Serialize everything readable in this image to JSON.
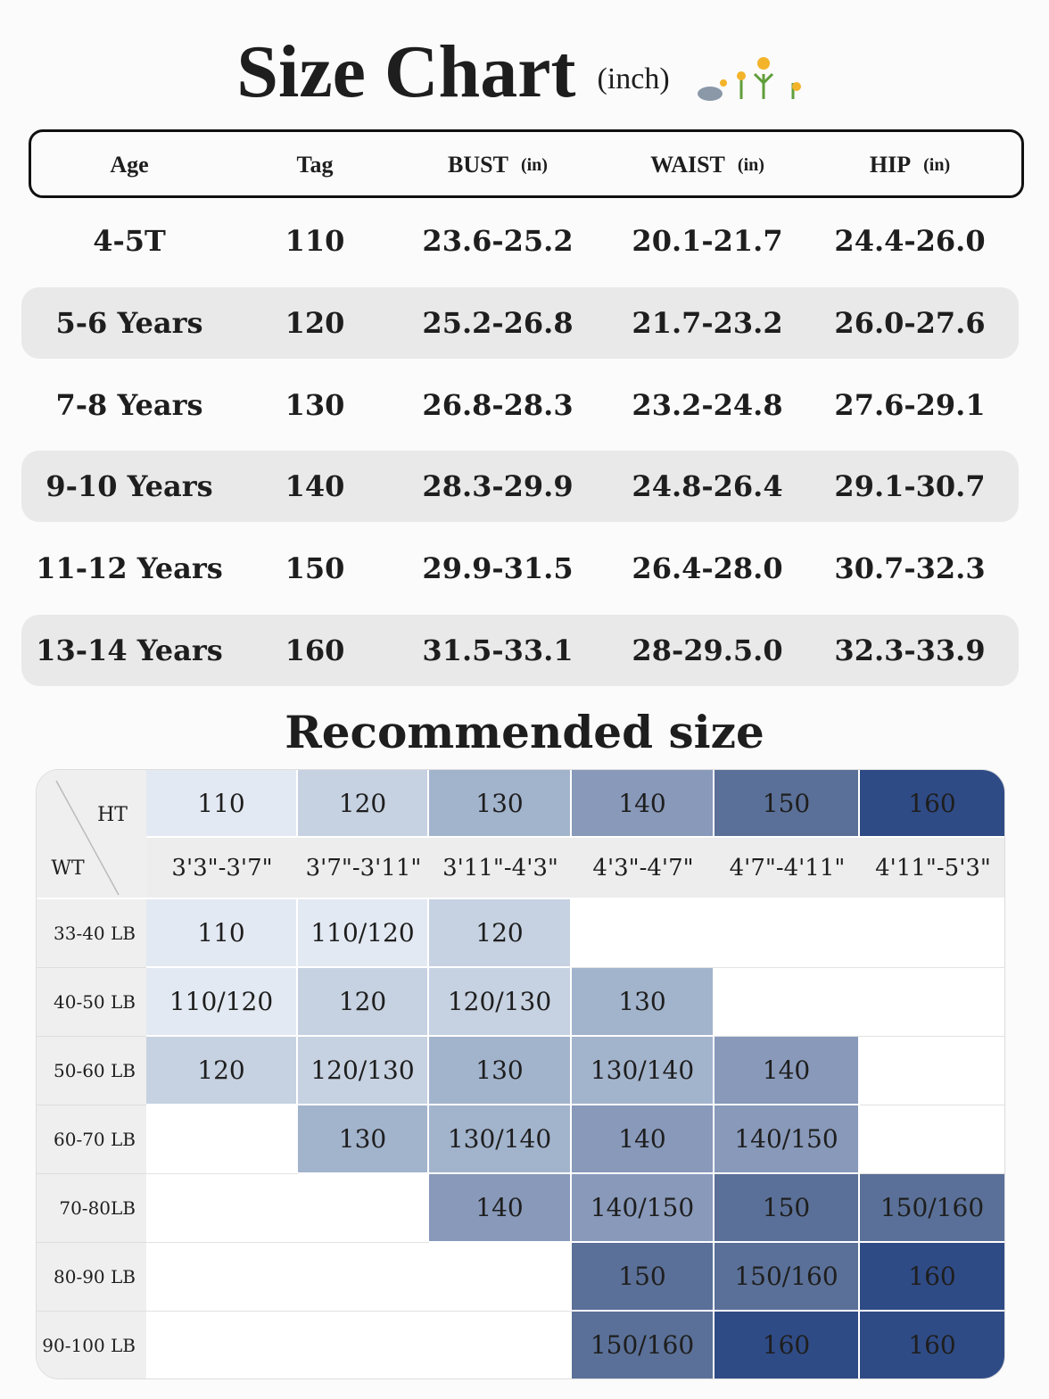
{
  "header": {
    "title": "Size Chart",
    "unit": "(inch)"
  },
  "size_table": {
    "columns": [
      {
        "name": "Age"
      },
      {
        "name": "Tag"
      },
      {
        "name": "BUST",
        "unit": "(in)"
      },
      {
        "name": "WAIST",
        "unit": "(in)"
      },
      {
        "name": "HIP",
        "unit": "(in)"
      }
    ],
    "rows": [
      [
        "4-5T",
        "110",
        "23.6-25.2",
        "20.1-21.7",
        "24.4-26.0"
      ],
      [
        "5-6 Years",
        "120",
        "25.2-26.8",
        "21.7-23.2",
        "26.0-27.6"
      ],
      [
        "7-8 Years",
        "130",
        "26.8-28.3",
        "23.2-24.8",
        "27.6-29.1"
      ],
      [
        "9-10 Years",
        "140",
        "28.3-29.9",
        "24.8-26.4",
        "29.1-30.7"
      ],
      [
        "11-12 Years",
        "150",
        "29.9-31.5",
        "26.4-28.0",
        "30.7-32.3"
      ],
      [
        "13-14 Years",
        "160",
        "31.5-33.1",
        "28-29.5.0",
        "32.3-33.9"
      ]
    ]
  },
  "recommended": {
    "title": "Recommended size",
    "height_label": "HT",
    "weight_label": "WT",
    "heights": [
      "110",
      "120",
      "130",
      "140",
      "150",
      "160"
    ],
    "height_ranges": [
      "3'3\"-3'7\"",
      "3'7\"-3'11\"",
      "3'11\"-4'3\"",
      "4'3\"-4'7\"",
      "4'7\"-4'11\"",
      "4'11\"-5'3\""
    ],
    "rows": [
      {
        "weight": "33-40 LB",
        "cells": [
          "110",
          "110/120",
          "120",
          null,
          null,
          null
        ]
      },
      {
        "weight": "40-50 LB",
        "cells": [
          "110/120",
          "120",
          "120/130",
          "130",
          null,
          null
        ]
      },
      {
        "weight": "50-60 LB",
        "cells": [
          "120",
          "120/130",
          "130",
          "130/140",
          "140",
          null
        ]
      },
      {
        "weight": "60-70 LB",
        "cells": [
          null,
          "130",
          "130/140",
          "140",
          "140/150",
          null
        ]
      },
      {
        "weight": "70-80LB",
        "cells": [
          null,
          null,
          "140",
          "140/150",
          "150",
          "150/160"
        ]
      },
      {
        "weight": "80-90 LB",
        "cells": [
          null,
          null,
          null,
          "150",
          "150/160",
          "160"
        ]
      },
      {
        "weight": "90-100 LB",
        "cells": [
          null,
          null,
          null,
          "150/160",
          "160",
          "160"
        ]
      }
    ]
  }
}
